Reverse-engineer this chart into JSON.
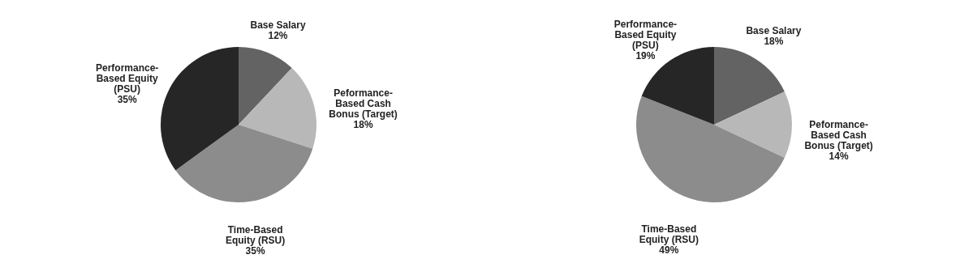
{
  "chart_data": [
    {
      "type": "pie",
      "categories": [
        "Base Salary",
        "Peformance-Based Cash Bonus (Target)",
        "Time-Based Equity (RSU)",
        "Performance-Based Equity (PSU)"
      ],
      "values": [
        12,
        18,
        35,
        35
      ],
      "value_labels": [
        "12%",
        "18%",
        "35%",
        "35%"
      ],
      "colors": [
        "#636363",
        "#b8b8b8",
        "#8c8c8c",
        "#262626"
      ]
    },
    {
      "type": "pie",
      "categories": [
        "Base Salary",
        "Peformance-Based Cash Bonus (Target)",
        "Time-Based Equity (RSU)",
        "Performance-Based Equity (PSU)"
      ],
      "values": [
        18,
        14,
        49,
        19
      ],
      "value_labels": [
        "18%",
        "14%",
        "49%",
        "19%"
      ],
      "colors": [
        "#636363",
        "#b8b8b8",
        "#8c8c8c",
        "#262626"
      ]
    }
  ]
}
